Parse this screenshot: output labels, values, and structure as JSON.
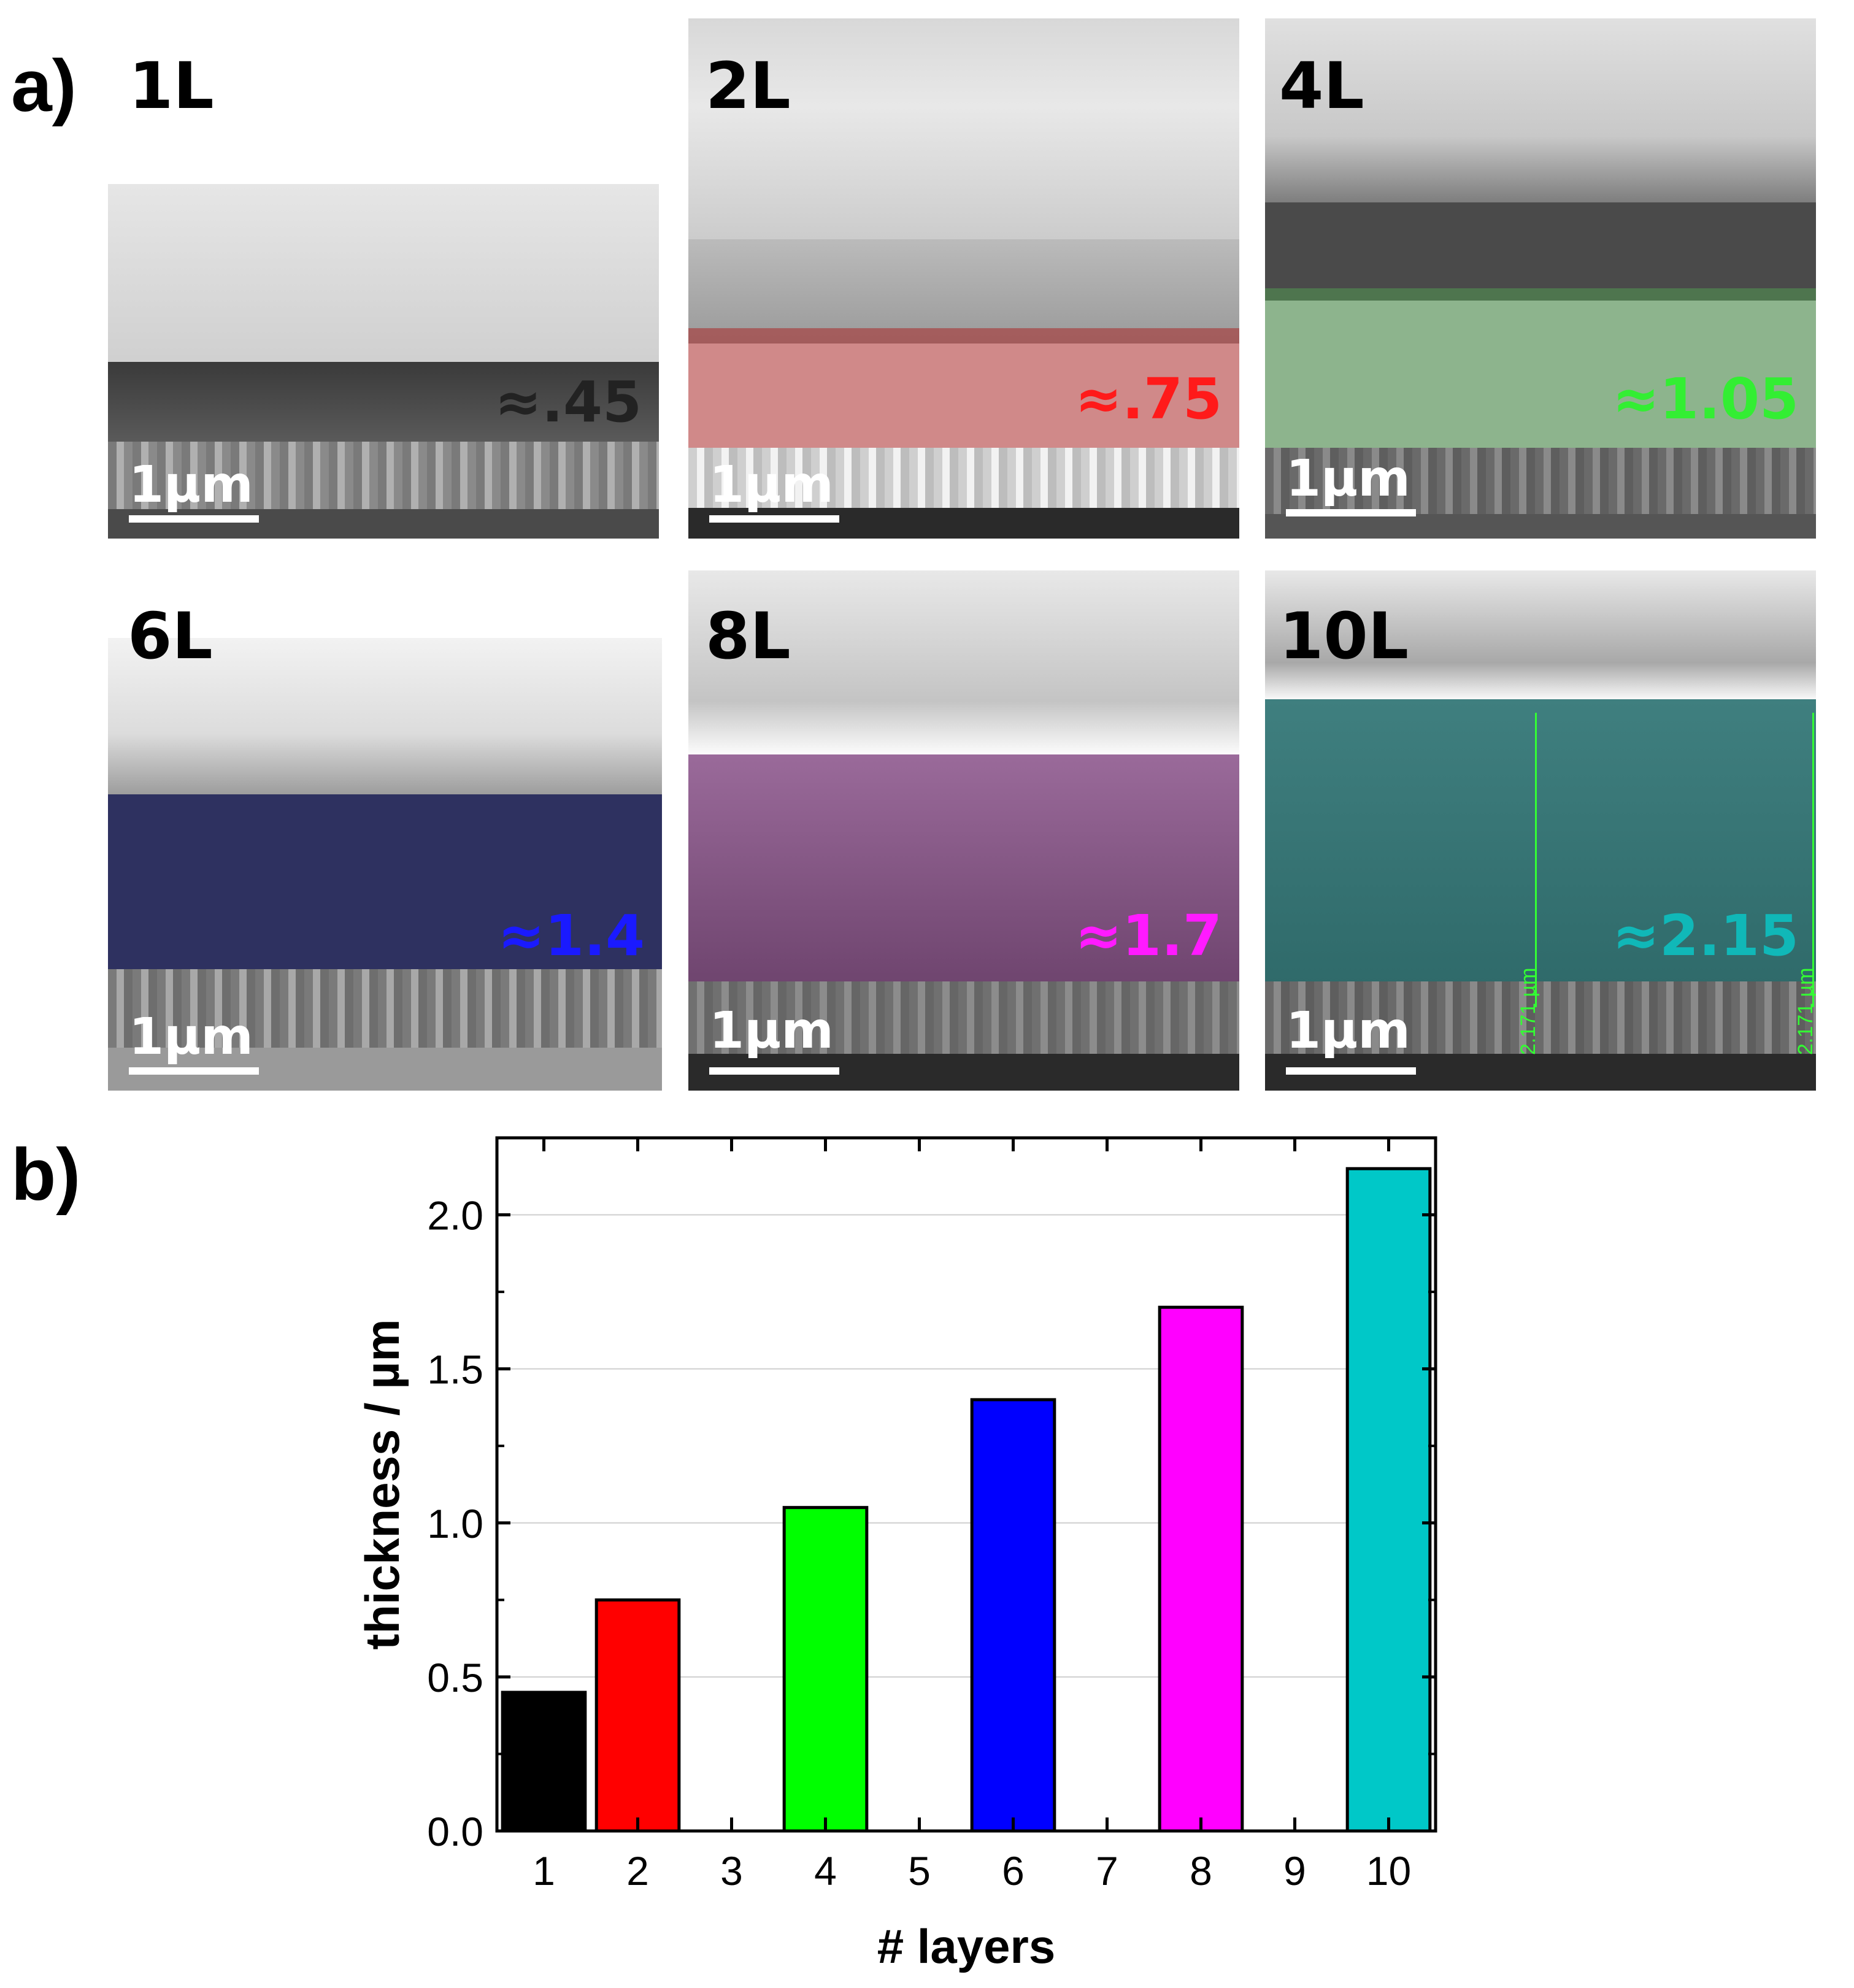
{
  "panel_a_label": "a)",
  "panel_b_label": "b)",
  "scale_bar_text": "1µm",
  "measurement_text": "2.171 µm",
  "tiles": [
    {
      "id": "1L",
      "label": "1L",
      "value": "≈.45",
      "color": "#000000",
      "text_color": "#000000",
      "value_color": "#222222"
    },
    {
      "id": "2L",
      "label": "2L",
      "value": "≈.75",
      "color": "#ff0000",
      "text_color": "#ff1a1a",
      "value_color": "#ff1a1a"
    },
    {
      "id": "4L",
      "label": "4L",
      "value": "≈1.05",
      "color": "#00ff00",
      "text_color": "#33ee33",
      "value_color": "#33ee33"
    },
    {
      "id": "6L",
      "label": "6L",
      "value": "≈1.4",
      "color": "#0000ff",
      "text_color": "#1a1aff",
      "value_color": "#1a1aff"
    },
    {
      "id": "8L",
      "label": "8L",
      "value": "≈1.7",
      "color": "#ff00ff",
      "text_color": "#ff1aff",
      "value_color": "#ff1aff"
    },
    {
      "id": "10L",
      "label": "10L",
      "value": "≈2.15",
      "color": "#00c8c8",
      "text_color": "#10b8b8",
      "value_color": "#10b8b8"
    }
  ],
  "chart_data": {
    "type": "bar",
    "xlabel": "# layers",
    "ylabel": "thickness / µm",
    "x_ticks": [
      "1",
      "2",
      "3",
      "4",
      "5",
      "6",
      "7",
      "8",
      "9",
      "10"
    ],
    "y_ticks": [
      "0.0",
      "0.5",
      "1.0",
      "1.5",
      "2.0"
    ],
    "xlim": [
      0.5,
      10.5
    ],
    "ylim": [
      0,
      2.25
    ],
    "grid": "horizontal",
    "bars": [
      {
        "x": 1,
        "value": 0.45,
        "color": "#000000"
      },
      {
        "x": 2,
        "value": 0.75,
        "color": "#ff0000"
      },
      {
        "x": 4,
        "value": 1.05,
        "color": "#00ff00"
      },
      {
        "x": 6,
        "value": 1.4,
        "color": "#0000ff"
      },
      {
        "x": 8,
        "value": 1.7,
        "color": "#ff00ff"
      },
      {
        "x": 10,
        "value": 2.15,
        "color": "#00c8c8"
      }
    ]
  }
}
